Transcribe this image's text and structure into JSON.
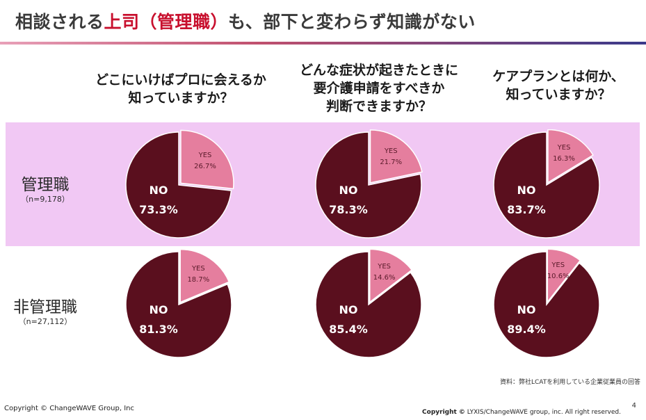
{
  "header": {
    "title_prefix": "相談される",
    "title_highlight": "上司（管理職）",
    "title_suffix": "も、部下と変わらず知識がない"
  },
  "questions": [
    {
      "line1": "どこにいけばプロに会えるか",
      "line2": "知っていますか？",
      "line3": ""
    },
    {
      "line1": "どんな症状が起きたときに",
      "line2": "要介護申請をすべきか",
      "line3": "判断できますか？"
    },
    {
      "line1": "ケアプランとは何か、",
      "line2": "知っていますか？",
      "line3": ""
    }
  ],
  "rows": [
    {
      "name": "管理職",
      "n": "（n=9,178）"
    },
    {
      "name": "非管理職",
      "n": "（n=27,112）"
    }
  ],
  "colors": {
    "yes": "#e57e9e",
    "no": "#5a0f1e",
    "band": "#f1c8f4",
    "title_accent": "#c8102e"
  },
  "chart_data": {
    "type": "pie",
    "series_labels": {
      "yes": "YES",
      "no": "NO"
    },
    "charts": [
      {
        "row": "管理職",
        "question": 1,
        "yes": 26.7,
        "no": 73.3,
        "yes_label": "26.7%",
        "no_label": "73.3%"
      },
      {
        "row": "管理職",
        "question": 2,
        "yes": 21.7,
        "no": 78.3,
        "yes_label": "21.7%",
        "no_label": "78.3%"
      },
      {
        "row": "管理職",
        "question": 3,
        "yes": 16.3,
        "no": 83.7,
        "yes_label": "16.3%",
        "no_label": "83.7%"
      },
      {
        "row": "非管理職",
        "question": 1,
        "yes": 18.7,
        "no": 81.3,
        "yes_label": "18.7%",
        "no_label": "81.3%"
      },
      {
        "row": "非管理職",
        "question": 2,
        "yes": 14.6,
        "no": 85.4,
        "yes_label": "14.6%",
        "no_label": "85.4%"
      },
      {
        "row": "非管理職",
        "question": 3,
        "yes": 10.6,
        "no": 89.4,
        "yes_label": "10.6%",
        "no_label": "89.4%"
      }
    ]
  },
  "footer": {
    "source": "資料：弊社LCATを利用している企業従業員の回答",
    "copyright_left": "Copyright © ChangeWAVE Group, Inc",
    "copyright_right_bold": "Copyright ©",
    "copyright_right": " LYXIS/ChangeWAVE group, inc. All right reserved.",
    "page_number": "4"
  }
}
